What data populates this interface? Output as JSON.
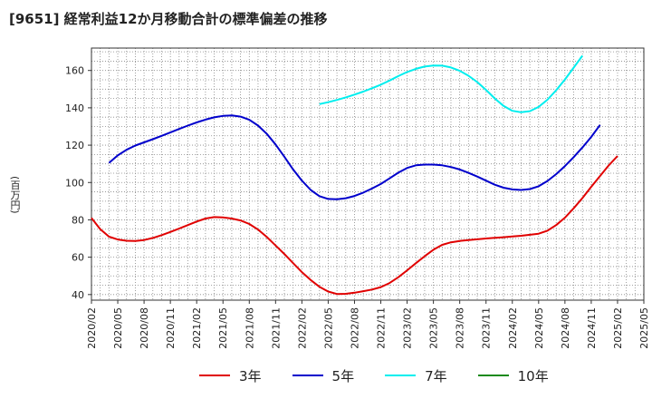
{
  "title": "[9651]  経常利益12か月移動合計の標準偏差の推移",
  "ylabel": "(百万円)",
  "chart_data": {
    "type": "line",
    "title": "[9651]  経常利益12か月移動合計の標準偏差の推移",
    "xlabel": "",
    "ylabel": "(百万円)",
    "ylim": [
      37,
      172
    ],
    "yticks": [
      40,
      60,
      80,
      100,
      120,
      140,
      160
    ],
    "xticks": [
      "2020/02",
      "2020/05",
      "2020/08",
      "2020/11",
      "2021/02",
      "2021/05",
      "2021/08",
      "2021/11",
      "2022/02",
      "2022/05",
      "2022/08",
      "2022/11",
      "2023/02",
      "2023/05",
      "2023/08",
      "2023/11",
      "2024/02",
      "2024/05",
      "2024/08",
      "2024/11",
      "2025/02",
      "2025/05"
    ],
    "grid": true,
    "legend_position": "bottom",
    "series": [
      {
        "name": "3年",
        "color": "#e00000",
        "points": [
          [
            "2020/02",
            81
          ],
          [
            "2020/03",
            75
          ],
          [
            "2020/04",
            71
          ],
          [
            "2020/05",
            69.5
          ],
          [
            "2020/06",
            68.8
          ],
          [
            "2020/07",
            68.7
          ],
          [
            "2020/08",
            69.2
          ],
          [
            "2020/09",
            70.3
          ],
          [
            "2020/10",
            71.8
          ],
          [
            "2020/11",
            73.5
          ],
          [
            "2020/12",
            75.3
          ],
          [
            "2021/01",
            77.2
          ],
          [
            "2021/02",
            79.1
          ],
          [
            "2021/03",
            80.7
          ],
          [
            "2021/04",
            81.5
          ],
          [
            "2021/05",
            81.3
          ],
          [
            "2021/06",
            80.7
          ],
          [
            "2021/07",
            79.7
          ],
          [
            "2021/08",
            77.8
          ],
          [
            "2021/09",
            74.8
          ],
          [
            "2021/10",
            70.8
          ],
          [
            "2021/11",
            66.3
          ],
          [
            "2021/12",
            61.7
          ],
          [
            "2022/01",
            56.8
          ],
          [
            "2022/02",
            52.0
          ],
          [
            "2022/03",
            47.8
          ],
          [
            "2022/04",
            44.2
          ],
          [
            "2022/05",
            41.6
          ],
          [
            "2022/06",
            40.3
          ],
          [
            "2022/07",
            40.4
          ],
          [
            "2022/08",
            41.0
          ],
          [
            "2022/09",
            41.8
          ],
          [
            "2022/10",
            42.7
          ],
          [
            "2022/11",
            44.0
          ],
          [
            "2022/12",
            46.2
          ],
          [
            "2023/01",
            49.3
          ],
          [
            "2023/02",
            53.0
          ],
          [
            "2023/03",
            56.8
          ],
          [
            "2023/04",
            60.5
          ],
          [
            "2023/05",
            64.0
          ],
          [
            "2023/06",
            66.6
          ],
          [
            "2023/07",
            68.0
          ],
          [
            "2023/08",
            68.7
          ],
          [
            "2023/09",
            69.2
          ],
          [
            "2023/10",
            69.6
          ],
          [
            "2023/11",
            70.0
          ],
          [
            "2023/12",
            70.4
          ],
          [
            "2024/01",
            70.7
          ],
          [
            "2024/02",
            71.1
          ],
          [
            "2024/03",
            71.5
          ],
          [
            "2024/04",
            72.0
          ],
          [
            "2024/05",
            72.6
          ],
          [
            "2024/06",
            74.2
          ],
          [
            "2024/07",
            77.2
          ],
          [
            "2024/08",
            81.2
          ],
          [
            "2024/09",
            86.2
          ],
          [
            "2024/10",
            91.7
          ],
          [
            "2024/11",
            97.7
          ],
          [
            "2024/12",
            103.5
          ],
          [
            "2025/01",
            109.2
          ],
          [
            "2025/02",
            114.2
          ]
        ]
      },
      {
        "name": "5年",
        "color": "#0000cc",
        "points": [
          [
            "2020/04",
            110.5
          ],
          [
            "2020/05",
            114.5
          ],
          [
            "2020/06",
            117.5
          ],
          [
            "2020/07",
            119.8
          ],
          [
            "2020/08",
            121.5
          ],
          [
            "2020/09",
            123.2
          ],
          [
            "2020/10",
            125.0
          ],
          [
            "2020/11",
            126.8
          ],
          [
            "2020/12",
            128.7
          ],
          [
            "2021/01",
            130.5
          ],
          [
            "2021/02",
            132.2
          ],
          [
            "2021/03",
            133.7
          ],
          [
            "2021/04",
            134.9
          ],
          [
            "2021/05",
            135.7
          ],
          [
            "2021/06",
            135.9
          ],
          [
            "2021/07",
            135.3
          ],
          [
            "2021/08",
            133.6
          ],
          [
            "2021/09",
            130.5
          ],
          [
            "2021/10",
            126.0
          ],
          [
            "2021/11",
            120.4
          ],
          [
            "2021/12",
            113.8
          ],
          [
            "2022/01",
            107.0
          ],
          [
            "2022/02",
            101.0
          ],
          [
            "2022/03",
            96.0
          ],
          [
            "2022/04",
            92.7
          ],
          [
            "2022/05",
            91.2
          ],
          [
            "2022/06",
            91.0
          ],
          [
            "2022/07",
            91.6
          ],
          [
            "2022/08",
            92.8
          ],
          [
            "2022/09",
            94.6
          ],
          [
            "2022/10",
            96.8
          ],
          [
            "2022/11",
            99.2
          ],
          [
            "2022/12",
            102.2
          ],
          [
            "2023/01",
            105.3
          ],
          [
            "2023/02",
            107.8
          ],
          [
            "2023/03",
            109.2
          ],
          [
            "2023/04",
            109.6
          ],
          [
            "2023/05",
            109.6
          ],
          [
            "2023/06",
            109.2
          ],
          [
            "2023/07",
            108.3
          ],
          [
            "2023/08",
            107.0
          ],
          [
            "2023/09",
            105.2
          ],
          [
            "2023/10",
            103.2
          ],
          [
            "2023/11",
            101.0
          ],
          [
            "2023/12",
            98.8
          ],
          [
            "2024/01",
            97.2
          ],
          [
            "2024/02",
            96.3
          ],
          [
            "2024/03",
            96.0
          ],
          [
            "2024/04",
            96.5
          ],
          [
            "2024/05",
            98.0
          ],
          [
            "2024/06",
            100.8
          ],
          [
            "2024/07",
            104.5
          ],
          [
            "2024/08",
            108.8
          ],
          [
            "2024/09",
            113.6
          ],
          [
            "2024/10",
            118.8
          ],
          [
            "2024/11",
            124.4
          ],
          [
            "2024/12",
            130.8
          ]
        ]
      },
      {
        "name": "7年",
        "color": "#00eeee",
        "points": [
          [
            "2022/04",
            142.0
          ],
          [
            "2022/05",
            143.0
          ],
          [
            "2022/06",
            144.2
          ],
          [
            "2022/07",
            145.6
          ],
          [
            "2022/08",
            147.1
          ],
          [
            "2022/09",
            148.7
          ],
          [
            "2022/10",
            150.5
          ],
          [
            "2022/11",
            152.4
          ],
          [
            "2022/12",
            154.6
          ],
          [
            "2023/01",
            157.0
          ],
          [
            "2023/02",
            159.2
          ],
          [
            "2023/03",
            160.9
          ],
          [
            "2023/04",
            162.1
          ],
          [
            "2023/05",
            162.7
          ],
          [
            "2023/06",
            162.6
          ],
          [
            "2023/07",
            161.6
          ],
          [
            "2023/08",
            159.8
          ],
          [
            "2023/09",
            157.2
          ],
          [
            "2023/10",
            153.8
          ],
          [
            "2023/11",
            149.6
          ],
          [
            "2023/12",
            145.0
          ],
          [
            "2024/01",
            141.0
          ],
          [
            "2024/02",
            138.4
          ],
          [
            "2024/03",
            137.6
          ],
          [
            "2024/04",
            138.2
          ],
          [
            "2024/05",
            140.5
          ],
          [
            "2024/06",
            144.3
          ],
          [
            "2024/07",
            149.4
          ],
          [
            "2024/08",
            155.2
          ],
          [
            "2024/09",
            161.5
          ],
          [
            "2024/10",
            167.9
          ]
        ]
      },
      {
        "name": "10年",
        "color": "#1a8a1a",
        "points": []
      }
    ]
  }
}
